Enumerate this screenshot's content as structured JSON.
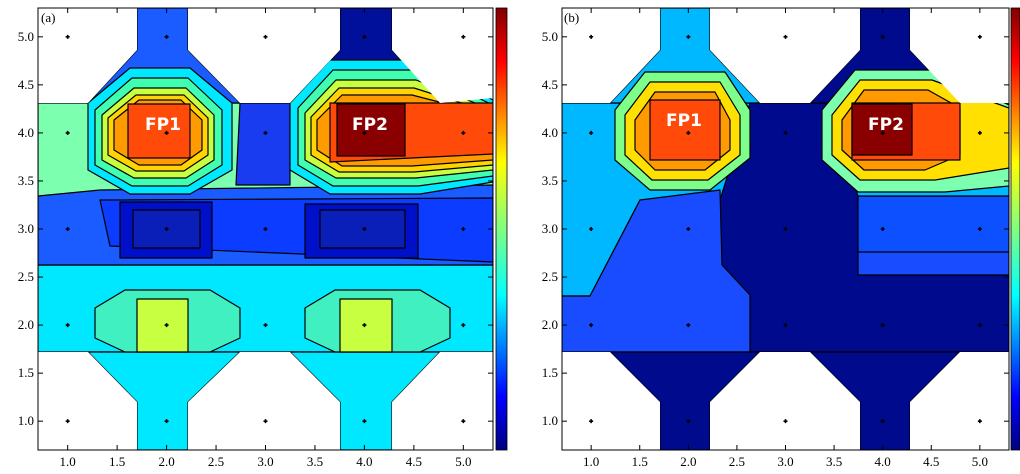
{
  "chart_data": [
    {
      "type": "contour",
      "panel_label": "(a)",
      "xlim": [
        0.7,
        5.3
      ],
      "ylim": [
        0.7,
        5.3
      ],
      "xticks": [
        1.0,
        1.5,
        2.0,
        2.5,
        3.0,
        3.5,
        4.0,
        4.5,
        5.0
      ],
      "yticks": [
        1.0,
        1.5,
        2.0,
        2.5,
        3.0,
        3.5,
        4.0,
        4.5,
        5.0
      ],
      "xtick_labels": [
        "1.0",
        "1.5",
        "2.0",
        "2.5",
        "3.0",
        "3.5",
        "4.0",
        "4.5",
        "5.0"
      ],
      "ytick_labels": [
        "1.0",
        "1.5",
        "2.0",
        "2.5",
        "3.0",
        "3.5",
        "4.0",
        "4.5",
        "5.0"
      ],
      "fixed_points": [
        {
          "label": "FP1",
          "x": 2.0,
          "y": 4.0
        },
        {
          "label": "FP2",
          "x": 4.0,
          "y": 4.0
        }
      ],
      "colorbar": true,
      "colorbar_ticks_labeled": false
    },
    {
      "type": "contour",
      "panel_label": "(b)",
      "xlim": [
        0.7,
        5.3
      ],
      "ylim": [
        0.7,
        5.3
      ],
      "xticks": [
        1.0,
        1.5,
        2.0,
        2.5,
        3.0,
        3.5,
        4.0,
        4.5,
        5.0
      ],
      "yticks": [
        1.0,
        1.5,
        2.0,
        2.5,
        3.0,
        3.5,
        4.0,
        4.5,
        5.0
      ],
      "xtick_labels": [
        "1.0",
        "1.5",
        "2.0",
        "2.5",
        "3.0",
        "3.5",
        "4.0",
        "4.5",
        "5.0"
      ],
      "ytick_labels": [
        "1.0",
        "1.5",
        "2.0",
        "2.5",
        "3.0",
        "3.5",
        "4.0",
        "4.5",
        "5.0"
      ],
      "fixed_points": [
        {
          "label": "FP1",
          "x": 2.0,
          "y": 4.0
        },
        {
          "label": "FP2",
          "x": 4.0,
          "y": 4.0
        }
      ],
      "colorbar": true,
      "colorbar_ticks_labeled": false
    }
  ],
  "colors": {
    "level_0": "#000080",
    "level_1": "#1a3cf0",
    "level_2": "#0c78ff",
    "level_3": "#00b8ff",
    "level_4": "#00e8ff",
    "level_5": "#7dff8a",
    "level_6": "#c8ff40",
    "level_7": "#ffe000",
    "level_8": "#ff9a00",
    "level_9": "#ff4a0a",
    "level_10": "#c81e00",
    "level_11": "#800000"
  }
}
